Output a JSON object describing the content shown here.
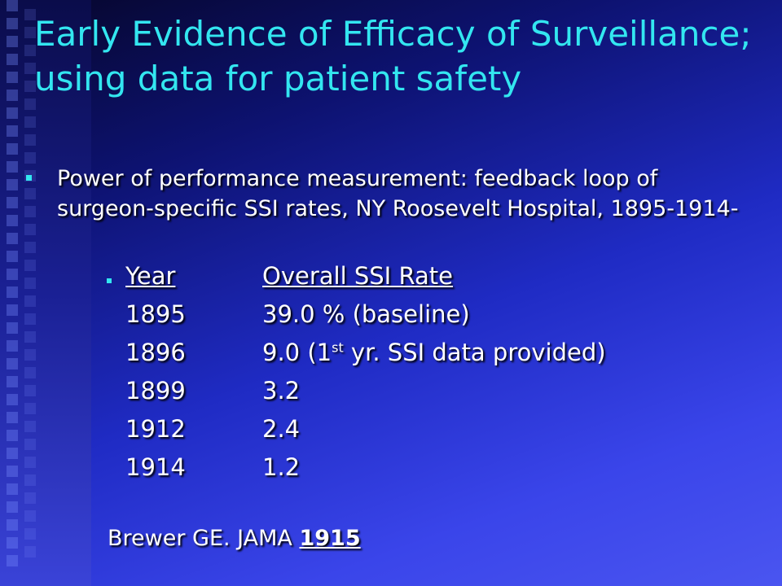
{
  "slide": {
    "title": "Early Evidence of Efficacy of Surveillance; using data for patient safety",
    "bullet": "Power of performance measurement: feedback loop of surgeon-specific SSI rates, NY Roosevelt Hospital, 1895-1914-",
    "table": {
      "headers": {
        "year": "Year",
        "rate": "Overall SSI Rate"
      },
      "rows": [
        {
          "year": "1895",
          "rate": "39.0 % (baseline)"
        },
        {
          "year": "1896",
          "rate_pre": "9.0 (1",
          "rate_sup": "st",
          "rate_post": " yr. SSI data provided)"
        },
        {
          "year": "1899",
          "rate": "3.2"
        },
        {
          "year": "1912",
          "rate": "2.4"
        },
        {
          "year": "1914",
          "rate": "1.2"
        }
      ]
    },
    "citation": {
      "text": "Brewer GE. JAMA ",
      "year": "1915"
    }
  },
  "colors": {
    "title": "#33e6f0",
    "bullet_marker": "#33e6f0",
    "text": "#ffffff"
  }
}
